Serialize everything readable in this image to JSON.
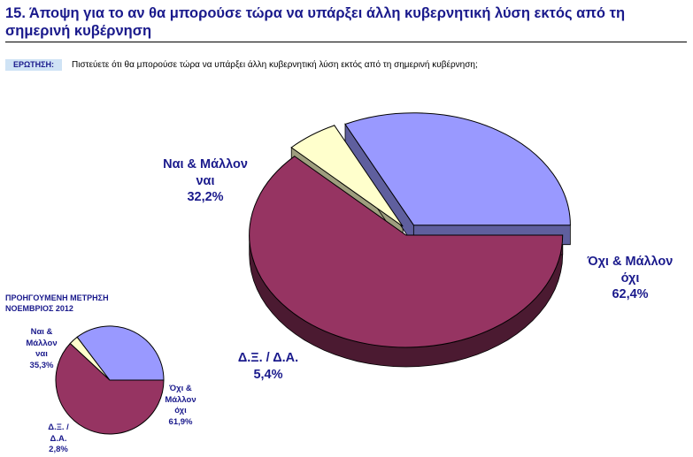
{
  "header": {
    "title": "15.  Άποψη για το αν θα μπορούσε τώρα να υπάρξει άλλη κυβερνητική λύση εκτός από τη σημερινή κυβέρνηση",
    "question_tag": "ΕΡΩΤΗΣΗ:",
    "question_text": "Πιστεύετε ότι θα μπορούσε τώρα να υπάρξει άλλη κυβερνητική λύση εκτός από τη σημερινή κυβέρνηση;"
  },
  "previous_label": "ΠΡΟΗΓΟΥΜΕΝΗ ΜΕΤΡΗΣΗ\nΝΟΕΜΒΡΙΟΣ 2012",
  "chart_data": [
    {
      "type": "pie",
      "title": "",
      "style": "3d-exploded",
      "categories": [
        "Όχι & Μάλλον όχι",
        "Δ.Ξ. / Δ.Α.",
        "Ναι & Μάλλον ναι"
      ],
      "values": [
        62.4,
        5.4,
        32.2
      ],
      "value_labels": [
        "62,4%",
        "5,4%",
        "32,2%"
      ],
      "label_lines": [
        [
          "Όχι & Μάλλον",
          "όχι",
          "62,4%"
        ],
        [
          "Δ.Ξ. / Δ.Α.",
          "5,4%"
        ],
        [
          "Ναι & Μάλλον",
          "ναι",
          "32,2%"
        ]
      ],
      "colors": [
        "#963462",
        "#ffffcc",
        "#9999ff"
      ]
    },
    {
      "type": "pie",
      "title": "",
      "categories": [
        "Όχι & Μάλλον όχι",
        "Δ.Ξ. / Δ.Α.",
        "Ναι & Μάλλον ναι"
      ],
      "values": [
        61.9,
        2.8,
        35.3
      ],
      "value_labels": [
        "61,9%",
        "2,8%",
        "35,3%"
      ],
      "label_lines": [
        [
          "Όχι &",
          "Μάλλον",
          "όχι",
          "61,9%"
        ],
        [
          "Δ.Ξ. /",
          "Δ.Α.",
          "2,8%"
        ],
        [
          "Ναι &",
          "Μάλλον",
          "ναι",
          "35,3%"
        ]
      ],
      "colors": [
        "#963462",
        "#ffffcc",
        "#9999ff"
      ]
    }
  ]
}
